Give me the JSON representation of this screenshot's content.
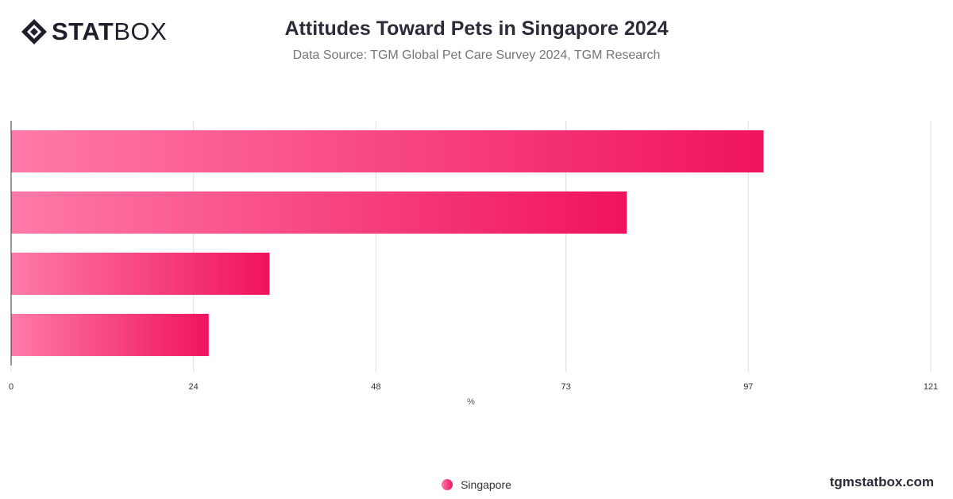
{
  "brand": {
    "bold": "STAT",
    "light": "BOX"
  },
  "watermark": "tgmstatbox.com",
  "colors": {
    "bar_start": "#ff7aa8",
    "bar_end": "#f0135f",
    "grid": "#dddddd",
    "axis": "#333333"
  },
  "chart_data": {
    "type": "bar",
    "orientation": "horizontal",
    "title": "Attitudes Toward Pets in Singapore 2024",
    "subtitle": "Data Source: TGM Global Pet Care Survey 2024, TGM Research",
    "xlabel": "%",
    "ylabel": "",
    "xlim": [
      0,
      121
    ],
    "x_ticks": [
      0,
      24,
      48,
      73,
      97,
      121
    ],
    "grid": true,
    "legend": "bottom-center",
    "categories": [
      "",
      "",
      "",
      ""
    ],
    "series": [
      {
        "name": "Singapore",
        "values": [
          99,
          81,
          34,
          26
        ]
      }
    ]
  }
}
